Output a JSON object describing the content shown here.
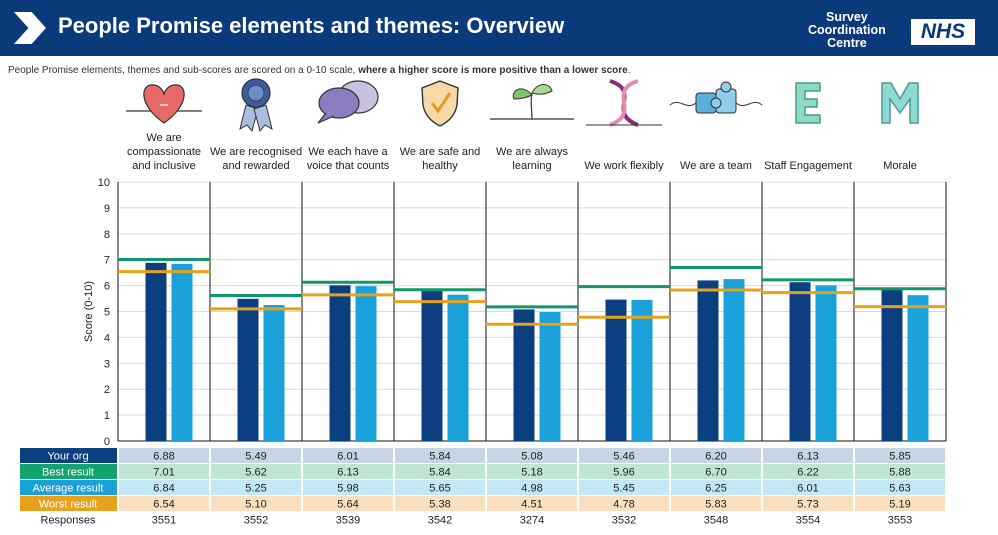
{
  "header": {
    "title": "People Promise elements and themes: Overview",
    "brand_line1": "Survey",
    "brand_line2": "Coordination",
    "brand_line3": "Centre",
    "nhs": "NHS"
  },
  "subtitle": {
    "normal": "People Promise elements, themes and sub-scores are scored on a 0-10 scale, ",
    "bold": "where a higher score is more positive than a lower score",
    "end": "."
  },
  "colors": {
    "header": "#0b3a7a",
    "your_org": "#0b3f7f",
    "average": "#1ba1da",
    "best_line": "#0f9968",
    "worst_line": "#e8a11b",
    "your_org_row": "#c7d5e6",
    "best_row": "#bfe6d3",
    "average_row": "#c2e7f5",
    "worst_row": "#fbe0c0",
    "your_org_label_bg": "#0b3f7f",
    "best_label_bg": "#13a36d",
    "average_label_bg": "#1ba1da",
    "worst_label_bg": "#e8a11b"
  },
  "chart_data": {
    "type": "bar",
    "ylabel": "Score (0-10)",
    "ylim": [
      0,
      10
    ],
    "yticks": [
      "0",
      "1",
      "2",
      "3",
      "4",
      "5",
      "6",
      "7",
      "8",
      "9",
      "10"
    ],
    "categories": [
      {
        "label": [
          "We are",
          "compassionate",
          "and inclusive"
        ],
        "icon": "heart-icon"
      },
      {
        "label": [
          "We are recognised",
          "and rewarded"
        ],
        "icon": "rosette-icon"
      },
      {
        "label": [
          "We each have a",
          "voice that counts"
        ],
        "icon": "speech-bubbles-icon"
      },
      {
        "label": [
          "We are safe and",
          "healthy"
        ],
        "icon": "shield-check-icon"
      },
      {
        "label": [
          "We are always",
          "learning"
        ],
        "icon": "sprout-icon"
      },
      {
        "label": [
          "We work flexibly"
        ],
        "icon": "dna-helix-icon"
      },
      {
        "label": [
          "We are a team"
        ],
        "icon": "puzzle-icon"
      },
      {
        "label": [
          "Staff Engagement"
        ],
        "icon": "letter-e-icon"
      },
      {
        "label": [
          "Morale"
        ],
        "icon": "letter-m-icon"
      }
    ],
    "series": [
      {
        "name": "Your org",
        "kind": "bar",
        "values": [
          6.88,
          5.49,
          6.01,
          5.84,
          5.08,
          5.46,
          6.2,
          6.13,
          5.85
        ]
      },
      {
        "name": "Best result",
        "kind": "line",
        "values": [
          7.01,
          5.62,
          6.13,
          5.84,
          5.18,
          5.96,
          6.7,
          6.22,
          5.88
        ]
      },
      {
        "name": "Average result",
        "kind": "bar",
        "values": [
          6.84,
          5.25,
          5.98,
          5.65,
          4.98,
          5.45,
          6.25,
          6.01,
          5.63
        ]
      },
      {
        "name": "Worst result",
        "kind": "line",
        "values": [
          6.54,
          5.1,
          5.64,
          5.38,
          4.51,
          4.78,
          5.83,
          5.73,
          5.19
        ]
      }
    ],
    "table": {
      "rows": [
        {
          "label": "Your org",
          "values": [
            "6.88",
            "5.49",
            "6.01",
            "5.84",
            "5.08",
            "5.46",
            "6.20",
            "6.13",
            "5.85"
          ]
        },
        {
          "label": "Best result",
          "values": [
            "7.01",
            "5.62",
            "6.13",
            "5.84",
            "5.18",
            "5.96",
            "6.70",
            "6.22",
            "5.88"
          ]
        },
        {
          "label": "Average result",
          "values": [
            "6.84",
            "5.25",
            "5.98",
            "5.65",
            "4.98",
            "5.45",
            "6.25",
            "6.01",
            "5.63"
          ]
        },
        {
          "label": "Worst result",
          "values": [
            "6.54",
            "5.10",
            "5.64",
            "5.38",
            "4.51",
            "4.78",
            "5.83",
            "5.73",
            "5.19"
          ]
        },
        {
          "label": "Responses",
          "values": [
            "3551",
            "3552",
            "3539",
            "3542",
            "3274",
            "3532",
            "3548",
            "3554",
            "3553"
          ]
        }
      ]
    }
  }
}
